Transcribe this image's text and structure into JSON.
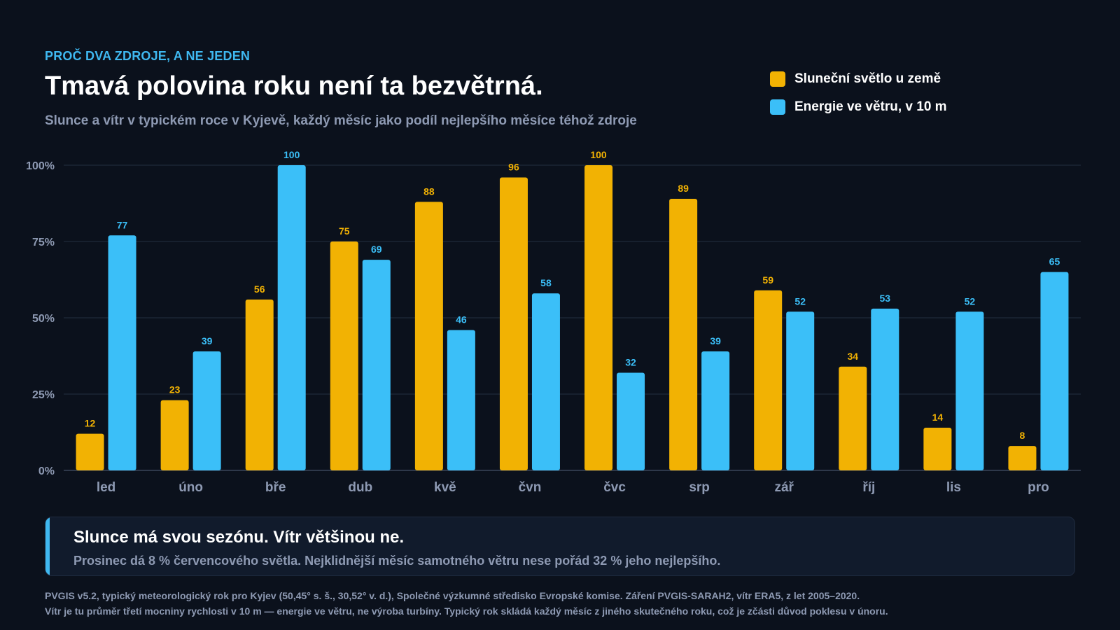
{
  "eyebrow": "PROČ DVA ZDROJE, A NE JEDEN",
  "title": "Tmavá polovina roku není ta bezvětrná.",
  "subtitle": "Slunce a vítr v typickém roce v Kyjevě, každý měsíc jako podíl nejlepšího měsíce téhož zdroje",
  "legend": [
    {
      "label": "Sluneční světlo u země",
      "color": "#f2b203"
    },
    {
      "label": "Energie ve větru, v 10 m",
      "color": "#3bbff8"
    }
  ],
  "chart_data": {
    "type": "bar",
    "title": "",
    "xlabel": "",
    "ylabel": "",
    "categories": [
      "led",
      "úno",
      "bře",
      "dub",
      "kvě",
      "čvn",
      "čvc",
      "srp",
      "zář",
      "říj",
      "lis",
      "pro"
    ],
    "series": [
      {
        "name": "Sluneční světlo u země",
        "color": "#f2b203",
        "values": [
          12,
          23,
          56,
          75,
          88,
          96,
          100,
          89,
          59,
          34,
          14,
          8
        ]
      },
      {
        "name": "Energie ve větru, v 10 m",
        "color": "#3bbff8",
        "values": [
          77,
          39,
          100,
          69,
          46,
          58,
          32,
          39,
          52,
          53,
          52,
          65
        ]
      }
    ],
    "ylim": [
      0,
      100
    ],
    "yticks": [
      0,
      25,
      50,
      75,
      100
    ],
    "ytick_labels": [
      "0%",
      "25%",
      "50%",
      "75%",
      "100%"
    ],
    "grid": true,
    "legend_position": "top-right",
    "data_labels": true
  },
  "callout": {
    "title": "Slunce má svou sezónu. Vítr většinou ne.",
    "text": "Prosinec dá 8 % červencového světla. Nejklidnější měsíc samotného větru nese pořád 32 % jeho nejlepšího."
  },
  "footnotes": [
    "PVGIS v5.2, typický meteorologický rok pro Kyjev (50,45° s. š., 30,52° v. d.), Společné výzkumné středisko Evropské komise. Záření PVGIS-SARAH2, vítr ERA5, z let 2005–2020.",
    "Vítr je tu průměr třetí mocniny rychlosti v 10 m — energie ve větru, ne výroba turbíny. Typický rok skládá každý měsíc z jiného skutečného roku, což je zčásti důvod poklesu v únoru."
  ]
}
